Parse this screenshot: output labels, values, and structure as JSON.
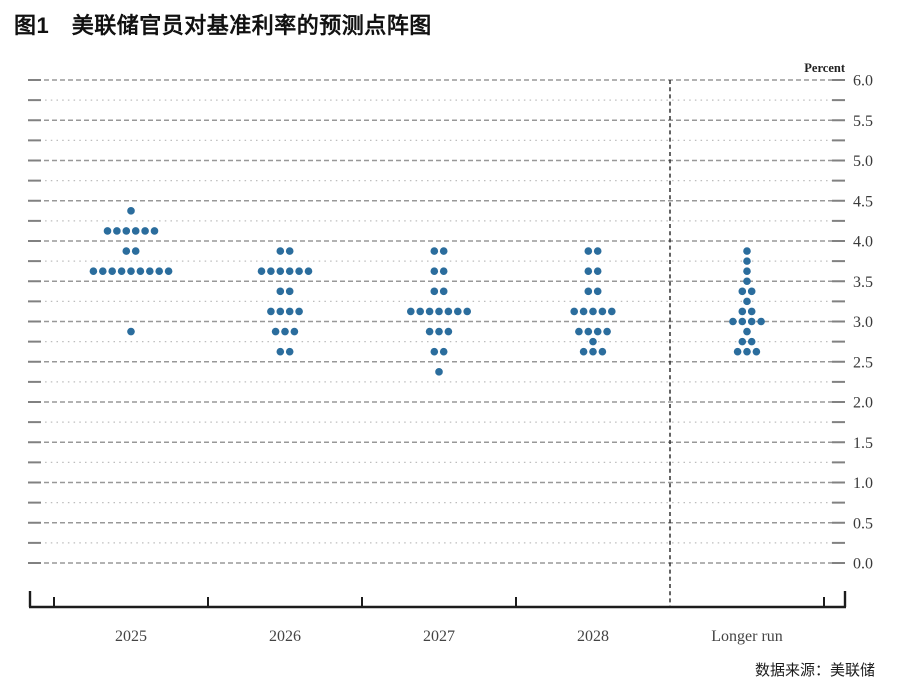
{
  "page": {
    "title": "图1　美联储官员对基准利率的预测点阵图",
    "source": "数据来源：美联储"
  },
  "chart_data": {
    "type": "scatter",
    "variant": "fed-dot-plot",
    "title": "",
    "xlabel": "",
    "ylabel": "",
    "percent_label": "Percent",
    "grid": "dotted-horizontal",
    "legend": "none",
    "dot_color": "#2b6d9d",
    "categories": [
      "2025",
      "2026",
      "2027",
      "2028",
      "Longer run"
    ],
    "separator_before_category": "Longer run",
    "y_axis": {
      "min": 0.0,
      "max": 6.0,
      "major_step": 0.5,
      "minor_step": 0.25,
      "tick_labels": [
        "6.0",
        "5.5",
        "5.0",
        "4.5",
        "4.0",
        "3.5",
        "3.0",
        "2.5",
        "2.0",
        "1.5",
        "1.0",
        "0.5",
        "0.0"
      ]
    },
    "series": [
      {
        "category": "2025",
        "dots": [
          {
            "rate": 4.375,
            "count": 1
          },
          {
            "rate": 4.125,
            "count": 6
          },
          {
            "rate": 3.875,
            "count": 2
          },
          {
            "rate": 3.625,
            "count": 9
          },
          {
            "rate": 2.875,
            "count": 1
          }
        ]
      },
      {
        "category": "2026",
        "dots": [
          {
            "rate": 3.875,
            "count": 2
          },
          {
            "rate": 3.625,
            "count": 6
          },
          {
            "rate": 3.375,
            "count": 2
          },
          {
            "rate": 3.125,
            "count": 4
          },
          {
            "rate": 2.875,
            "count": 3
          },
          {
            "rate": 2.625,
            "count": 2
          }
        ]
      },
      {
        "category": "2027",
        "dots": [
          {
            "rate": 3.875,
            "count": 2
          },
          {
            "rate": 3.625,
            "count": 2
          },
          {
            "rate": 3.375,
            "count": 2
          },
          {
            "rate": 3.125,
            "count": 7
          },
          {
            "rate": 2.875,
            "count": 3
          },
          {
            "rate": 2.625,
            "count": 2
          },
          {
            "rate": 2.375,
            "count": 1
          }
        ]
      },
      {
        "category": "2028",
        "dots": [
          {
            "rate": 3.875,
            "count": 2
          },
          {
            "rate": 3.625,
            "count": 2
          },
          {
            "rate": 3.375,
            "count": 2
          },
          {
            "rate": 3.125,
            "count": 5
          },
          {
            "rate": 2.875,
            "count": 4
          },
          {
            "rate": 2.75,
            "count": 1
          },
          {
            "rate": 2.625,
            "count": 3
          }
        ]
      },
      {
        "category": "Longer run",
        "dots": [
          {
            "rate": 3.875,
            "count": 1
          },
          {
            "rate": 3.75,
            "count": 1
          },
          {
            "rate": 3.625,
            "count": 1
          },
          {
            "rate": 3.5,
            "count": 1
          },
          {
            "rate": 3.375,
            "count": 2
          },
          {
            "rate": 3.25,
            "count": 1
          },
          {
            "rate": 3.125,
            "count": 2
          },
          {
            "rate": 3.0,
            "count": 4
          },
          {
            "rate": 2.875,
            "count": 1
          },
          {
            "rate": 2.75,
            "count": 2
          },
          {
            "rate": 2.625,
            "count": 3
          }
        ]
      }
    ]
  }
}
